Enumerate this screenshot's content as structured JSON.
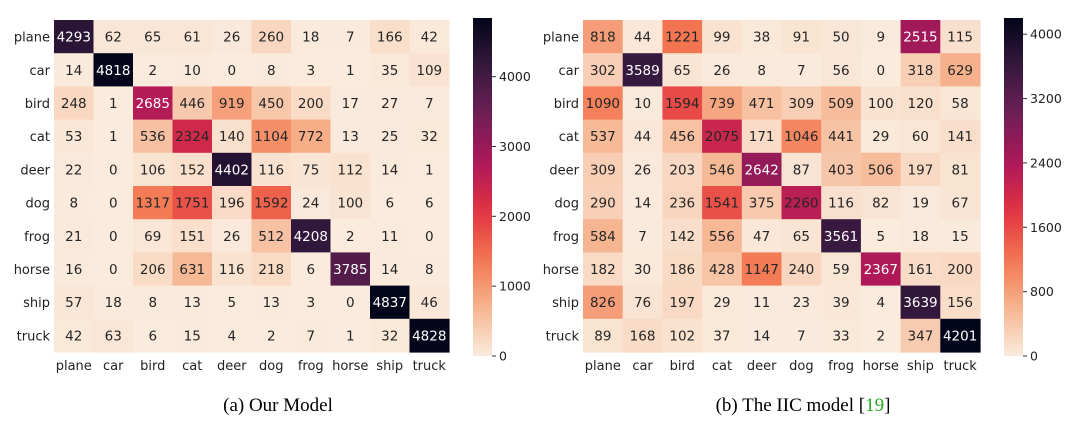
{
  "chart_data": [
    {
      "type": "heatmap",
      "caption": "(a) Our Model",
      "caption_prefix": "(a) Our Model",
      "citation": "",
      "row_labels": [
        "plane",
        "car",
        "bird",
        "cat",
        "deer",
        "dog",
        "frog",
        "horse",
        "ship",
        "truck"
      ],
      "col_labels": [
        "plane",
        "car",
        "bird",
        "cat",
        "deer",
        "dog",
        "frog",
        "horse",
        "ship",
        "truck"
      ],
      "values": [
        [
          4293,
          62,
          65,
          61,
          26,
          260,
          18,
          7,
          166,
          42
        ],
        [
          14,
          4818,
          2,
          10,
          0,
          8,
          3,
          1,
          35,
          109
        ],
        [
          248,
          1,
          2685,
          446,
          919,
          450,
          200,
          17,
          27,
          7
        ],
        [
          53,
          1,
          536,
          2324,
          140,
          1104,
          772,
          13,
          25,
          32
        ],
        [
          22,
          0,
          106,
          152,
          4402,
          116,
          75,
          112,
          14,
          1
        ],
        [
          8,
          0,
          1317,
          1751,
          196,
          1592,
          24,
          100,
          6,
          6
        ],
        [
          21,
          0,
          69,
          151,
          26,
          512,
          4208,
          2,
          11,
          0
        ],
        [
          16,
          0,
          206,
          631,
          116,
          218,
          6,
          3785,
          14,
          8
        ],
        [
          57,
          18,
          8,
          13,
          5,
          13,
          3,
          0,
          4837,
          46
        ],
        [
          42,
          63,
          6,
          15,
          4,
          2,
          7,
          1,
          32,
          4828
        ]
      ],
      "colorbar_range": [
        0,
        4840
      ],
      "colorbar_ticks": [
        0,
        1000,
        2000,
        3000,
        4000
      ],
      "colormap": "rocket_r"
    },
    {
      "type": "heatmap",
      "caption": "(b) The IIC model [19]",
      "caption_prefix": "(b) The IIC model [",
      "citation": "19",
      "caption_suffix": "]",
      "row_labels": [
        "plane",
        "car",
        "bird",
        "cat",
        "deer",
        "dog",
        "frog",
        "horse",
        "ship",
        "truck"
      ],
      "col_labels": [
        "plane",
        "car",
        "bird",
        "cat",
        "deer",
        "dog",
        "frog",
        "horse",
        "ship",
        "truck"
      ],
      "values": [
        [
          818,
          44,
          1221,
          99,
          38,
          91,
          50,
          9,
          2515,
          115
        ],
        [
          302,
          3589,
          65,
          26,
          8,
          7,
          56,
          0,
          318,
          629
        ],
        [
          1090,
          10,
          1594,
          739,
          471,
          309,
          509,
          100,
          120,
          58
        ],
        [
          537,
          44,
          456,
          2075,
          171,
          1046,
          441,
          29,
          60,
          141
        ],
        [
          309,
          26,
          203,
          546,
          2642,
          87,
          403,
          506,
          197,
          81
        ],
        [
          290,
          14,
          236,
          1541,
          375,
          2260,
          116,
          82,
          19,
          67
        ],
        [
          584,
          7,
          142,
          556,
          47,
          65,
          3561,
          5,
          18,
          15
        ],
        [
          182,
          30,
          186,
          428,
          1147,
          240,
          59,
          2367,
          161,
          200
        ],
        [
          826,
          76,
          197,
          29,
          11,
          23,
          39,
          4,
          3639,
          156
        ],
        [
          89,
          168,
          102,
          37,
          14,
          7,
          33,
          2,
          347,
          4201
        ]
      ],
      "colorbar_range": [
        0,
        4201
      ],
      "colorbar_ticks": [
        0,
        800,
        1600,
        2400,
        3200,
        4000
      ],
      "colormap": "rocket_r"
    }
  ],
  "colors": {
    "cmap_stops": [
      "#faebdd",
      "#f6b48f",
      "#f37651",
      "#e13342",
      "#ad1759",
      "#701f57",
      "#35193e",
      "#03051a"
    ],
    "citation_color": "#22aa22"
  }
}
